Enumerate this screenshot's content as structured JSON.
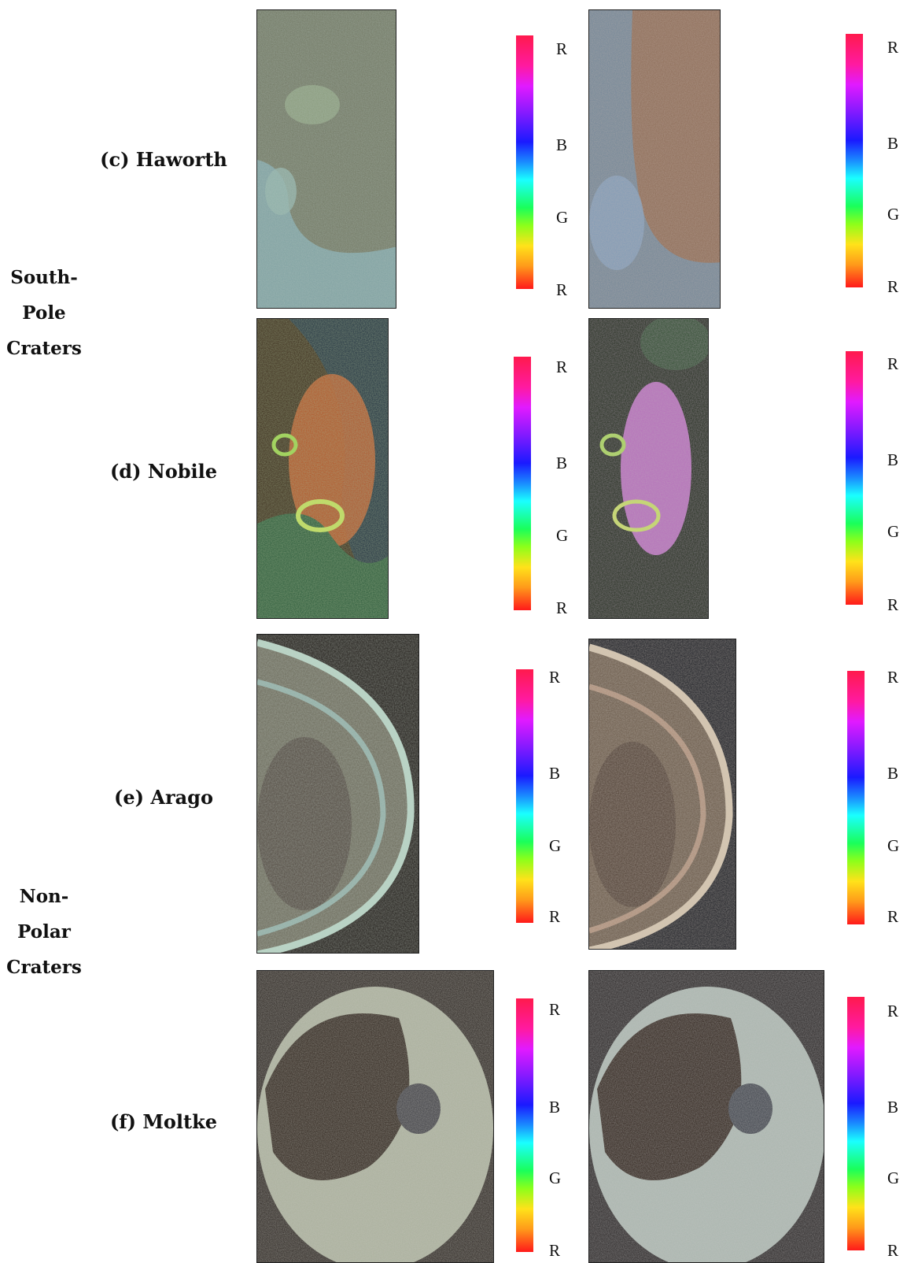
{
  "groups": {
    "south_pole": {
      "line1": "South-",
      "line2": "Pole",
      "line3": "Craters"
    },
    "non_polar": {
      "line1": "Non-",
      "line2": "Polar",
      "line3": "Craters"
    }
  },
  "craters": [
    {
      "label": "(c) Haworth"
    },
    {
      "label": "(d) Nobile"
    },
    {
      "label": "(e) Arago"
    },
    {
      "label": "(f) Moltke"
    }
  ],
  "colorbar_ticks": [
    "R",
    "B",
    "G",
    "R"
  ]
}
